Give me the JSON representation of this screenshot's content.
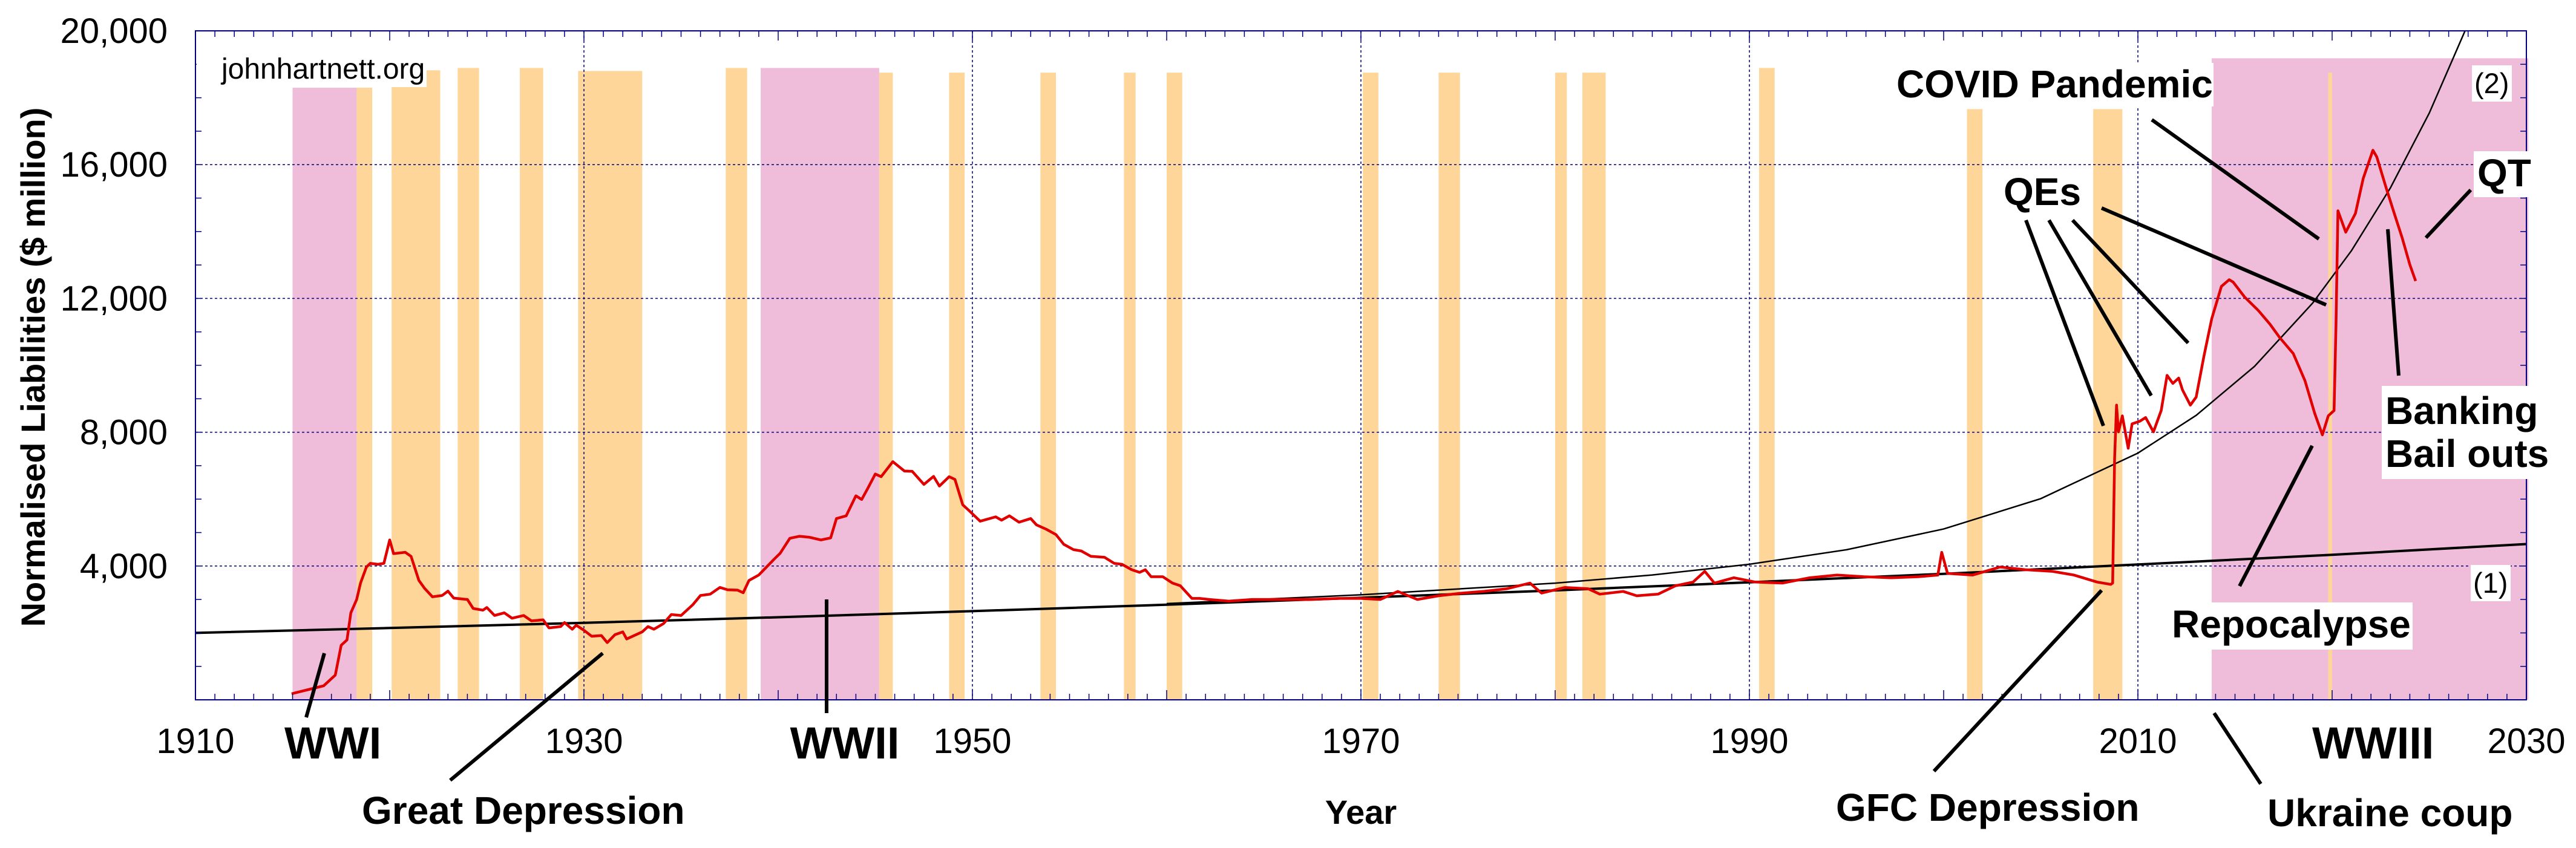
{
  "chart_data": {
    "type": "line",
    "xlabel": "Year",
    "ylabel": "Normalised Liabilities ($ million)",
    "xlim": [
      1910,
      2030
    ],
    "ylim": [
      0,
      20000
    ],
    "x_ticks": [
      "1910",
      "1930",
      "1950",
      "1970",
      "1990",
      "2010",
      "2030"
    ],
    "x_tick_values": [
      1910,
      1930,
      1950,
      1970,
      1990,
      2010,
      2030
    ],
    "y_ticks": [
      "4,000",
      "8,000",
      "12,000",
      "16,000",
      "20,000"
    ],
    "y_tick_values": [
      4000,
      8000,
      12000,
      16000,
      20000
    ],
    "grid": true,
    "colors": {
      "series": "#e00000",
      "trend": "#000000",
      "war": "#efbdd9",
      "recession": "#ffd699",
      "frame": "#000080"
    },
    "bands": [
      {
        "kind": "war",
        "start": 1915.0,
        "end": 1918.3,
        "top": 18300
      },
      {
        "kind": "war",
        "start": 1939.1,
        "end": 1945.2,
        "top": 18890
      },
      {
        "kind": "war",
        "start": 2013.8,
        "end": 2030.1,
        "top": 19180
      },
      {
        "kind": "recession",
        "start": 1918.3,
        "end": 1919.1,
        "top": 18300
      },
      {
        "kind": "recession",
        "start": 1920.1,
        "end": 1922.6,
        "top": 18820
      },
      {
        "kind": "recession",
        "start": 1923.5,
        "end": 1924.6,
        "top": 18890
      },
      {
        "kind": "recession",
        "start": 1926.7,
        "end": 1927.9,
        "top": 18890
      },
      {
        "kind": "recession",
        "start": 1929.7,
        "end": 1933.0,
        "top": 18800
      },
      {
        "kind": "recession",
        "start": 1937.3,
        "end": 1938.4,
        "top": 18890
      },
      {
        "kind": "recession",
        "start": 1945.2,
        "end": 1945.9,
        "top": 18750
      },
      {
        "kind": "recession",
        "start": 1948.8,
        "end": 1949.6,
        "top": 18750
      },
      {
        "kind": "recession",
        "start": 1953.5,
        "end": 1954.3,
        "top": 18750
      },
      {
        "kind": "recession",
        "start": 1957.8,
        "end": 1958.4,
        "top": 18750
      },
      {
        "kind": "recession",
        "start": 1960.0,
        "end": 1960.8,
        "top": 18750
      },
      {
        "kind": "recession",
        "start": 1970.1,
        "end": 1970.9,
        "top": 18750
      },
      {
        "kind": "recession",
        "start": 1974.0,
        "end": 1975.1,
        "top": 18750
      },
      {
        "kind": "recession",
        "start": 1980.0,
        "end": 1980.6,
        "top": 18750
      },
      {
        "kind": "recession",
        "start": 1981.4,
        "end": 1982.6,
        "top": 18750
      },
      {
        "kind": "recession",
        "start": 1990.5,
        "end": 1991.3,
        "top": 18890
      },
      {
        "kind": "recession",
        "start": 2001.2,
        "end": 2002.0,
        "top": 17660
      },
      {
        "kind": "recession",
        "start": 2007.7,
        "end": 2009.2,
        "top": 17660
      },
      {
        "kind": "recession",
        "start": 2019.8,
        "end": 2020.0,
        "top": 18750
      }
    ],
    "series": [
      {
        "name": "Normalised Liabilities",
        "points": [
          [
            1914.95,
            180
          ],
          [
            1916.6,
            420
          ],
          [
            1917.2,
            740
          ],
          [
            1917.5,
            1630
          ],
          [
            1917.8,
            1790
          ],
          [
            1918.0,
            2600
          ],
          [
            1918.3,
            3000
          ],
          [
            1918.5,
            3490
          ],
          [
            1918.8,
            3970
          ],
          [
            1919.0,
            4080
          ],
          [
            1919.4,
            4050
          ],
          [
            1919.7,
            4080
          ],
          [
            1920.0,
            4780
          ],
          [
            1920.2,
            4370
          ],
          [
            1920.8,
            4410
          ],
          [
            1921.1,
            4290
          ],
          [
            1921.5,
            3570
          ],
          [
            1921.8,
            3330
          ],
          [
            1922.2,
            3080
          ],
          [
            1922.7,
            3120
          ],
          [
            1923.0,
            3250
          ],
          [
            1923.3,
            3040
          ],
          [
            1924.0,
            3000
          ],
          [
            1924.3,
            2730
          ],
          [
            1924.8,
            2680
          ],
          [
            1925.0,
            2760
          ],
          [
            1925.4,
            2520
          ],
          [
            1925.9,
            2600
          ],
          [
            1926.3,
            2440
          ],
          [
            1926.9,
            2520
          ],
          [
            1927.3,
            2360
          ],
          [
            1927.9,
            2390
          ],
          [
            1928.2,
            2150
          ],
          [
            1928.8,
            2190
          ],
          [
            1929.0,
            2310
          ],
          [
            1929.4,
            2110
          ],
          [
            1929.6,
            2230
          ],
          [
            1930.0,
            2080
          ],
          [
            1930.4,
            1900
          ],
          [
            1930.9,
            1920
          ],
          [
            1931.2,
            1710
          ],
          [
            1931.6,
            1950
          ],
          [
            1932.0,
            2030
          ],
          [
            1932.2,
            1820
          ],
          [
            1933.0,
            2030
          ],
          [
            1933.3,
            2190
          ],
          [
            1933.6,
            2110
          ],
          [
            1934.1,
            2280
          ],
          [
            1934.5,
            2550
          ],
          [
            1935.0,
            2520
          ],
          [
            1935.6,
            2840
          ],
          [
            1936.0,
            3120
          ],
          [
            1936.5,
            3160
          ],
          [
            1937.0,
            3360
          ],
          [
            1937.4,
            3290
          ],
          [
            1937.9,
            3280
          ],
          [
            1938.2,
            3200
          ],
          [
            1938.5,
            3570
          ],
          [
            1939.0,
            3730
          ],
          [
            1939.4,
            3970
          ],
          [
            1939.8,
            4210
          ],
          [
            1940.1,
            4380
          ],
          [
            1940.6,
            4830
          ],
          [
            1941.1,
            4890
          ],
          [
            1941.6,
            4860
          ],
          [
            1942.2,
            4780
          ],
          [
            1942.7,
            4840
          ],
          [
            1943.0,
            5420
          ],
          [
            1943.5,
            5500
          ],
          [
            1944.0,
            6100
          ],
          [
            1944.3,
            5990
          ],
          [
            1944.6,
            6310
          ],
          [
            1945.0,
            6750
          ],
          [
            1945.3,
            6670
          ],
          [
            1945.9,
            7120
          ],
          [
            1946.5,
            6840
          ],
          [
            1946.9,
            6830
          ],
          [
            1947.5,
            6440
          ],
          [
            1948.0,
            6680
          ],
          [
            1948.3,
            6390
          ],
          [
            1948.8,
            6670
          ],
          [
            1949.1,
            6590
          ],
          [
            1949.5,
            5830
          ],
          [
            1949.8,
            5670
          ],
          [
            1950.4,
            5340
          ],
          [
            1951.2,
            5470
          ],
          [
            1951.5,
            5370
          ],
          [
            1951.9,
            5500
          ],
          [
            1952.4,
            5310
          ],
          [
            1953.0,
            5420
          ],
          [
            1953.3,
            5230
          ],
          [
            1953.8,
            5100
          ],
          [
            1954.3,
            4940
          ],
          [
            1954.7,
            4650
          ],
          [
            1955.2,
            4490
          ],
          [
            1955.6,
            4450
          ],
          [
            1956.1,
            4290
          ],
          [
            1956.8,
            4260
          ],
          [
            1957.3,
            4080
          ],
          [
            1957.7,
            4050
          ],
          [
            1958.2,
            3890
          ],
          [
            1958.6,
            3810
          ],
          [
            1958.9,
            3890
          ],
          [
            1959.2,
            3680
          ],
          [
            1959.8,
            3680
          ],
          [
            1960.3,
            3490
          ],
          [
            1960.7,
            3410
          ],
          [
            1961.3,
            3030
          ],
          [
            1961.7,
            3030
          ],
          [
            1962.2,
            3000
          ],
          [
            1963.2,
            2950
          ],
          [
            1964.4,
            3000
          ],
          [
            1965.9,
            3000
          ],
          [
            1967.4,
            3000
          ],
          [
            1968.9,
            3030
          ],
          [
            1970.0,
            3030
          ],
          [
            1971.0,
            3000
          ],
          [
            1971.9,
            3240
          ],
          [
            1972.9,
            3000
          ],
          [
            1974.0,
            3110
          ],
          [
            1975.2,
            3190
          ],
          [
            1976.3,
            3240
          ],
          [
            1977.5,
            3320
          ],
          [
            1978.7,
            3490
          ],
          [
            1979.3,
            3190
          ],
          [
            1980.5,
            3360
          ],
          [
            1981.7,
            3320
          ],
          [
            1982.3,
            3160
          ],
          [
            1983.5,
            3240
          ],
          [
            1984.2,
            3110
          ],
          [
            1985.3,
            3160
          ],
          [
            1986.2,
            3410
          ],
          [
            1987.1,
            3520
          ],
          [
            1987.7,
            3840
          ],
          [
            1988.2,
            3490
          ],
          [
            1989.2,
            3650
          ],
          [
            1990.3,
            3520
          ],
          [
            1991.7,
            3490
          ],
          [
            1993.1,
            3650
          ],
          [
            1994.5,
            3730
          ],
          [
            1995.9,
            3680
          ],
          [
            1997.3,
            3650
          ],
          [
            1998.7,
            3680
          ],
          [
            1999.7,
            3730
          ],
          [
            1999.9,
            4410
          ],
          [
            2000.2,
            3780
          ],
          [
            2001.5,
            3730
          ],
          [
            2002.9,
            3970
          ],
          [
            2004.2,
            3890
          ],
          [
            2005.6,
            3840
          ],
          [
            2006.7,
            3730
          ],
          [
            2007.9,
            3520
          ],
          [
            2008.6,
            3450
          ],
          [
            2008.7,
            3490
          ],
          [
            2008.8,
            7200
          ],
          [
            2008.9,
            8810
          ],
          [
            2009.0,
            8010
          ],
          [
            2009.2,
            8490
          ],
          [
            2009.5,
            7520
          ],
          [
            2009.7,
            8250
          ],
          [
            2010.1,
            8330
          ],
          [
            2010.4,
            8440
          ],
          [
            2010.8,
            8010
          ],
          [
            2011.2,
            8650
          ],
          [
            2011.5,
            9700
          ],
          [
            2011.8,
            9460
          ],
          [
            2012.1,
            9620
          ],
          [
            2012.3,
            9260
          ],
          [
            2012.7,
            8810
          ],
          [
            2013.0,
            9050
          ],
          [
            2013.4,
            10270
          ],
          [
            2013.8,
            11390
          ],
          [
            2014.3,
            12360
          ],
          [
            2014.7,
            12560
          ],
          [
            2014.9,
            12490
          ],
          [
            2015.5,
            12040
          ],
          [
            2016.2,
            11640
          ],
          [
            2016.8,
            11230
          ],
          [
            2017.3,
            10830
          ],
          [
            2018.0,
            10350
          ],
          [
            2018.6,
            9540
          ],
          [
            2019.1,
            8570
          ],
          [
            2019.5,
            7920
          ],
          [
            2019.8,
            8490
          ],
          [
            2020.1,
            8650
          ],
          [
            2020.2,
            11230
          ],
          [
            2020.3,
            14620
          ],
          [
            2020.7,
            13980
          ],
          [
            2021.2,
            14540
          ],
          [
            2021.6,
            15590
          ],
          [
            2022.1,
            16430
          ],
          [
            2022.3,
            16230
          ],
          [
            2022.8,
            15270
          ],
          [
            2023.2,
            14540
          ],
          [
            2023.6,
            13820
          ],
          [
            2024.0,
            13010
          ],
          [
            2024.3,
            12520
          ]
        ]
      }
    ],
    "trends": [
      {
        "name": "(1)",
        "label": "(1)",
        "points": [
          [
            1910,
            2000
          ],
          [
            1920,
            2146
          ],
          [
            1930,
            2302
          ],
          [
            1940,
            2469
          ],
          [
            1950,
            2651
          ],
          [
            1960,
            2842
          ],
          [
            1970,
            3052
          ],
          [
            1980,
            3272
          ],
          [
            1990,
            3513
          ],
          [
            2000,
            3766
          ],
          [
            2010,
            4045
          ],
          [
            2020,
            4336
          ],
          [
            2030,
            4657
          ]
        ]
      },
      {
        "name": "(2)",
        "label": "(2)",
        "points": [
          [
            1960,
            2877
          ],
          [
            1970,
            3139
          ],
          [
            1980,
            3489
          ],
          [
            1985,
            3732
          ],
          [
            1990,
            4053
          ],
          [
            1995,
            4487
          ],
          [
            2000,
            5107
          ],
          [
            2005,
            6014
          ],
          [
            2010,
            7377
          ],
          [
            2013,
            8505
          ],
          [
            2016,
            9967
          ],
          [
            2019,
            11862
          ],
          [
            2021,
            13432
          ],
          [
            2023,
            15306
          ],
          [
            2025,
            17541
          ],
          [
            2027,
            20212
          ],
          [
            2028,
            21900
          ]
        ]
      }
    ],
    "annotations": {
      "credit": "johnhartnett.org",
      "wwi": "WWI",
      "wwii": "WWII",
      "wwiii": "WWIII",
      "great_depression": "Great Depression",
      "gfc": "GFC Depression",
      "ukraine": "Ukraine coup",
      "covid": "COVID Pandemic",
      "qes": "QEs",
      "qt": "QT",
      "banking_line1": "Banking",
      "banking_line2": "Bail outs",
      "repocalypse": "Repocalypse",
      "trend1": "(1)",
      "trend2": "(2)"
    }
  }
}
